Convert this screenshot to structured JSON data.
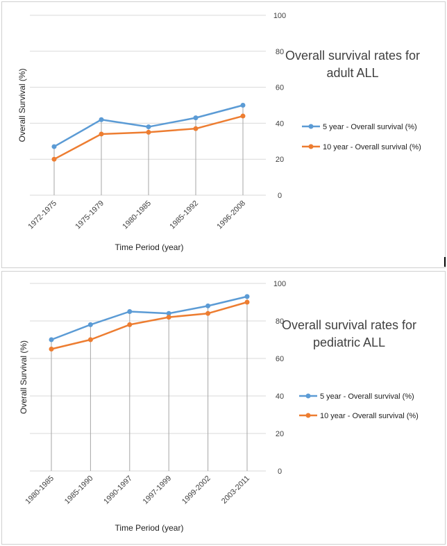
{
  "chart_data": [
    {
      "type": "line",
      "title": [
        "Overall survival  rates for",
        "adult ALL"
      ],
      "xlabel": "Time Period  (year)",
      "ylabel": "Overall Survival (%)",
      "ylim": [
        0,
        100
      ],
      "yticks": [
        0,
        20,
        40,
        60,
        80,
        100
      ],
      "categories": [
        "1972-1975",
        "1975-1979",
        "1980-1985",
        "1985-1992",
        "1996-2008"
      ],
      "grid": true,
      "legend": "right",
      "series": [
        {
          "name": "5 year - Overall survival (%)",
          "color": "#5b9bd5",
          "values": [
            27,
            42,
            38,
            43,
            50
          ]
        },
        {
          "name": "10 year - Overall survival (%)",
          "color": "#ed7d31",
          "values": [
            20,
            34,
            35,
            37,
            44
          ]
        }
      ]
    },
    {
      "type": "line",
      "title": [
        "Overall survival rates for",
        "pediatric ALL"
      ],
      "xlabel": "Time Period  (year)",
      "ylabel": "Overall Survival (%)",
      "ylim": [
        0,
        100
      ],
      "yticks": [
        0,
        20,
        40,
        60,
        80,
        100
      ],
      "categories": [
        "1980-1985",
        "1985-1990",
        "1990-1997",
        "1997-1999",
        "1999-2002",
        "2003-2011"
      ],
      "grid": true,
      "legend": "right",
      "series": [
        {
          "name": "5 year - Overall survival (%)",
          "color": "#5b9bd5",
          "values": [
            70,
            78,
            85,
            84,
            88,
            93
          ]
        },
        {
          "name": "10 year - Overall survival (%)",
          "color": "#ed7d31",
          "values": [
            65,
            70,
            78,
            82,
            84,
            90
          ]
        }
      ]
    }
  ]
}
